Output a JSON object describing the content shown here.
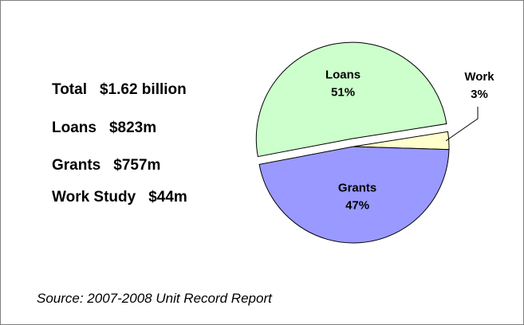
{
  "summary": {
    "total": {
      "label": "Total",
      "value": "$1.62 billion"
    },
    "loans": {
      "label": "Loans",
      "value": "$823m"
    },
    "grants": {
      "label": "Grants",
      "value": "$757m"
    },
    "work_study": {
      "label": "Work Study",
      "value": "$44m"
    }
  },
  "source": "Source: 2007-2008 Unit Record Report",
  "chart_data": {
    "type": "pie",
    "title": "",
    "exploded": [
      "Loans"
    ],
    "legend": "none",
    "slices": [
      {
        "label": "Loans",
        "value": 51,
        "pct_label": "51%",
        "color": "#ccffcc"
      },
      {
        "label": "Work",
        "value": 3,
        "pct_label": "3%",
        "color": "#ffffcc"
      },
      {
        "label": "Grants",
        "value": 47,
        "pct_label": "47%",
        "color": "#9999ff"
      }
    ]
  }
}
